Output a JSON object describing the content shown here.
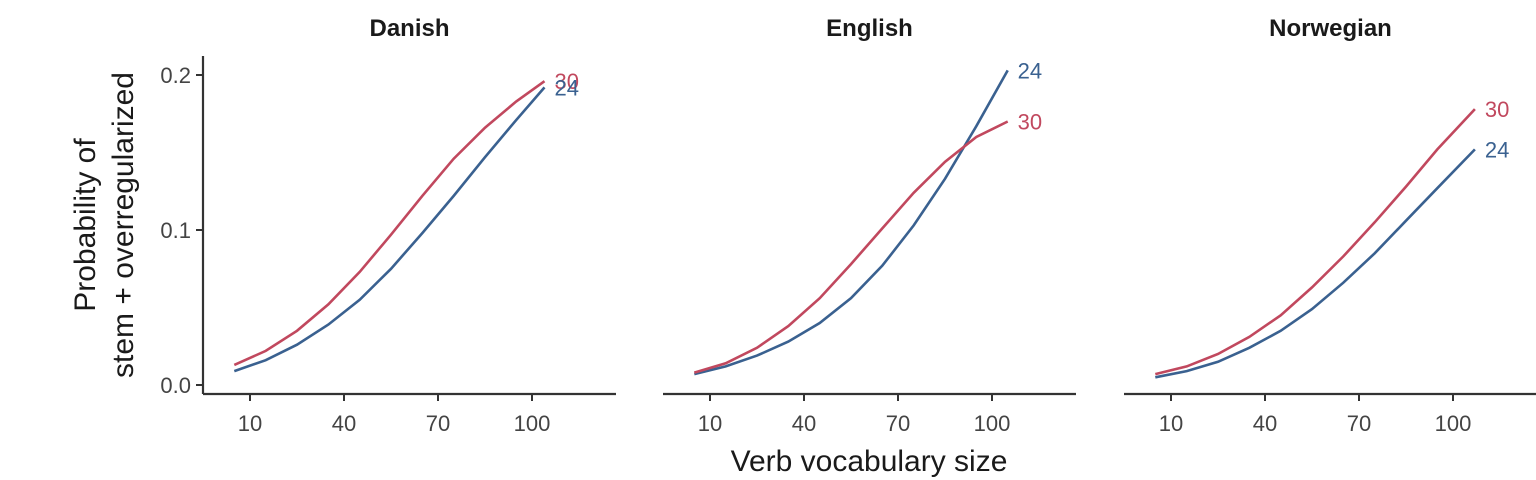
{
  "chart_data": {
    "type": "line",
    "xlabel": "Verb vocabulary size",
    "ylabel": [
      "Probability of",
      "stem + overregularized"
    ],
    "xticks": [
      10,
      40,
      70,
      100
    ],
    "yticks": [
      "0.0",
      "0.1",
      "0.2"
    ],
    "xlim": [
      0,
      130
    ],
    "ylim": [
      -0.005,
      0.21
    ],
    "grid": false,
    "legend": "none (direct end labels)",
    "colors": {
      "30": "#c1485e",
      "24": "#3a6190"
    },
    "panels": [
      {
        "title": "Danish",
        "series": [
          {
            "name": "30",
            "color": "#c1485e",
            "x": [
              5,
              15,
              25,
              35,
              45,
              55,
              65,
              75,
              85,
              95,
              104
            ],
            "y": [
              0.013,
              0.022,
              0.035,
              0.052,
              0.073,
              0.097,
              0.122,
              0.146,
              0.166,
              0.183,
              0.196
            ]
          },
          {
            "name": "24",
            "color": "#3a6190",
            "x": [
              5,
              15,
              25,
              35,
              45,
              55,
              65,
              75,
              85,
              95,
              104
            ],
            "y": [
              0.009,
              0.016,
              0.026,
              0.039,
              0.055,
              0.075,
              0.098,
              0.122,
              0.147,
              0.171,
              0.192
            ]
          }
        ]
      },
      {
        "title": "English",
        "series": [
          {
            "name": "24",
            "color": "#3a6190",
            "x": [
              5,
              15,
              25,
              35,
              45,
              55,
              65,
              75,
              85,
              95,
              105
            ],
            "y": [
              0.007,
              0.012,
              0.019,
              0.028,
              0.04,
              0.056,
              0.077,
              0.103,
              0.133,
              0.167,
              0.203
            ]
          },
          {
            "name": "30",
            "color": "#c1485e",
            "x": [
              5,
              15,
              25,
              35,
              45,
              55,
              65,
              75,
              85,
              95,
              105
            ],
            "y": [
              0.008,
              0.014,
              0.024,
              0.038,
              0.056,
              0.078,
              0.101,
              0.124,
              0.144,
              0.16,
              0.17
            ]
          }
        ]
      },
      {
        "title": "Norwegian",
        "series": [
          {
            "name": "30",
            "color": "#c1485e",
            "x": [
              5,
              15,
              25,
              35,
              45,
              55,
              65,
              75,
              85,
              95,
              107
            ],
            "y": [
              0.007,
              0.012,
              0.02,
              0.031,
              0.045,
              0.063,
              0.083,
              0.105,
              0.128,
              0.152,
              0.178
            ]
          },
          {
            "name": "24",
            "color": "#3a6190",
            "x": [
              5,
              15,
              25,
              35,
              45,
              55,
              65,
              75,
              85,
              95,
              107
            ],
            "y": [
              0.005,
              0.009,
              0.015,
              0.024,
              0.035,
              0.049,
              0.066,
              0.085,
              0.106,
              0.127,
              0.152
            ]
          }
        ]
      }
    ]
  }
}
